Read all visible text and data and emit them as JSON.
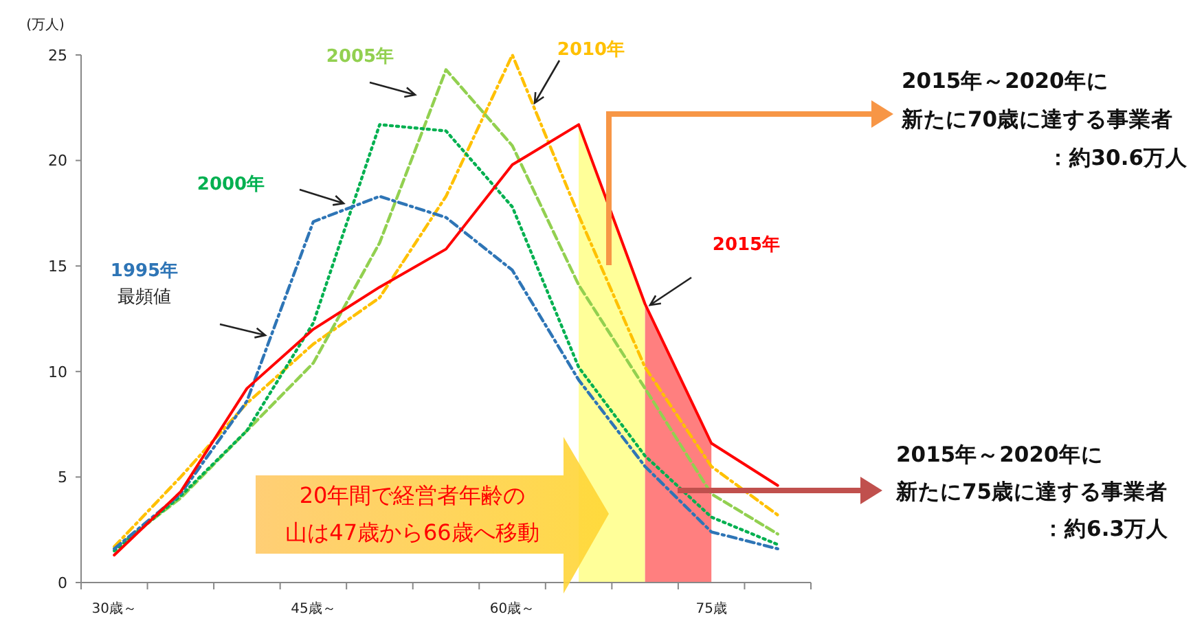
{
  "chart_data": {
    "type": "line",
    "ylabel": "(万人)",
    "categories": [
      "30歳～",
      null,
      null,
      "45歳～",
      null,
      null,
      "60歳～",
      null,
      null,
      "75歳",
      null
    ],
    "series": [
      {
        "name": "1995年",
        "color": "#2e75b6",
        "line_style": "dashdot",
        "values": [
          1.6,
          4.2,
          8.6,
          17.1,
          18.3,
          17.3,
          14.8,
          9.6,
          5.5,
          2.4,
          1.6
        ]
      },
      {
        "name": "2000年",
        "color": "#00b050",
        "line_style": "dotted",
        "values": [
          1.5,
          4.1,
          7.2,
          12.3,
          21.7,
          21.4,
          17.8,
          10.2,
          6.0,
          3.1,
          1.8
        ]
      },
      {
        "name": "2005年",
        "color": "#92d050",
        "line_style": "dashed",
        "values": [
          1.6,
          4.0,
          7.2,
          10.4,
          16.1,
          24.3,
          20.7,
          14.1,
          9.2,
          4.2,
          2.3
        ]
      },
      {
        "name": "2010年",
        "color": "#ffc000",
        "line_style": "dashdot",
        "values": [
          1.7,
          5.0,
          8.5,
          11.3,
          13.5,
          18.3,
          25.0,
          17.4,
          10.2,
          5.5,
          3.2
        ]
      },
      {
        "name": "2015年",
        "color": "#ff0000",
        "line_style": "solid",
        "values": [
          1.3,
          4.3,
          9.2,
          12.0,
          14.0,
          15.8,
          19.8,
          21.7,
          13.2,
          6.6,
          4.6
        ]
      }
    ],
    "ylim": [
      0,
      25
    ],
    "yticks": [
      0,
      5,
      10,
      15,
      20,
      25
    ],
    "grid": false,
    "legend": false,
    "marker": "none",
    "annotations": [
      "最頻値",
      "20年間で経営者年齢の",
      "山は47歳から66歳へ移動",
      "2015年～2020年に",
      "新たに70歳に達する事業者",
      "：約30.6万人",
      "2015年～2020年に",
      "新たに75歳に達する事業者",
      "：約6.3万人"
    ]
  }
}
